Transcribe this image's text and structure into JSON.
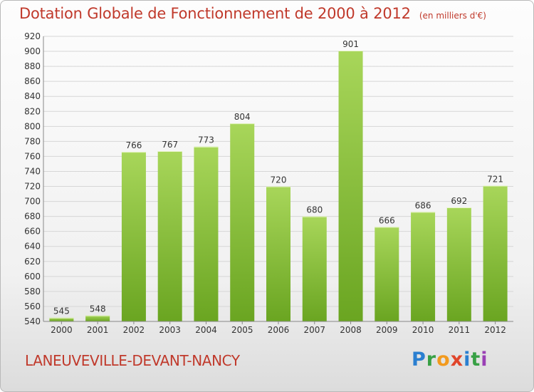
{
  "title": "Dotation Globale de Fonctionnement de 2000 à 2012",
  "subtitle": "(en milliers d'€)",
  "location": "LANEUVEVILLE-DEVANT-NANCY",
  "logo": {
    "p": "P",
    "r": "r",
    "o": "o",
    "x": "x",
    "i": "i",
    "t": "t",
    "i2": "i"
  },
  "colors": {
    "bar_light": "#a8d65a",
    "bar_dark": "#6aa521",
    "title": "#c0392b",
    "grid": "#d6d6d6",
    "axis_text": "#333333"
  },
  "chart_data": {
    "type": "bar",
    "categories": [
      "2000",
      "2001",
      "2002",
      "2003",
      "2004",
      "2005",
      "2006",
      "2007",
      "2008",
      "2009",
      "2010",
      "2011",
      "2012"
    ],
    "values": [
      545,
      548,
      766,
      767,
      773,
      804,
      720,
      680,
      901,
      666,
      686,
      692,
      721
    ],
    "ylim": [
      540,
      920
    ],
    "yticks": [
      540,
      560,
      580,
      600,
      620,
      640,
      660,
      680,
      700,
      720,
      740,
      760,
      780,
      800,
      820,
      840,
      860,
      880,
      900,
      920
    ],
    "grid": true,
    "xlabel": "",
    "ylabel": ""
  }
}
